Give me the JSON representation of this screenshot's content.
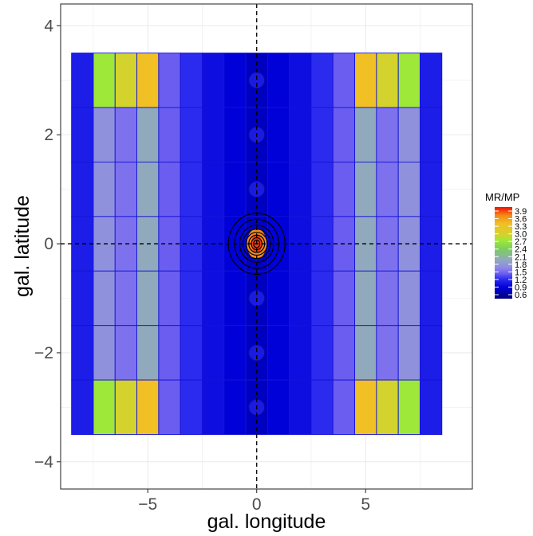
{
  "chart_data": {
    "type": "heatmap",
    "title": "",
    "xlabel": "gal. longitude",
    "ylabel": "gal. latitude",
    "xlim": [
      -9,
      9.9
    ],
    "ylim": [
      -4.5,
      4.4
    ],
    "x_ticks": [
      -5,
      0,
      5
    ],
    "x_tick_labels": [
      "−5",
      "0",
      "5"
    ],
    "y_ticks": [
      -4,
      -2,
      0,
      2,
      4
    ],
    "y_tick_labels": [
      "−4",
      "−2",
      "0",
      "2",
      "4"
    ],
    "grid": true,
    "x_centers": [
      -8,
      -7,
      -6,
      -5,
      -4,
      -3,
      -2,
      -1,
      0,
      1,
      2,
      3,
      4,
      5,
      6,
      7,
      8
    ],
    "y_centers": [
      3,
      2,
      1,
      0,
      -1,
      -2,
      -3
    ],
    "cell_width": 1,
    "cell_height": 1,
    "column_values": [
      1.2,
      1.8,
      1.6,
      2.0,
      1.5,
      1.3,
      1.1,
      1.0,
      0.9,
      1.0,
      1.1,
      1.3,
      1.5,
      2.0,
      1.6,
      1.8,
      1.2
    ],
    "edge_row_values": [
      1.2,
      2.7,
      2.9,
      3.3,
      1.5,
      1.3,
      1.1,
      1.0,
      0.9,
      1.0,
      1.1,
      1.3,
      1.5,
      3.3,
      2.9,
      2.7,
      1.2
    ],
    "edge_rows": [
      3,
      -3
    ],
    "points": [
      {
        "x": 0,
        "y": 3
      },
      {
        "x": 0,
        "y": 2
      },
      {
        "x": 0,
        "y": 1
      },
      {
        "x": 0,
        "y": -1
      },
      {
        "x": 0,
        "y": -2
      },
      {
        "x": 0,
        "y": -3
      }
    ],
    "contour_peak": {
      "x": 0,
      "y": 0,
      "value": 3.9
    },
    "reference_lines": {
      "x": 0,
      "y": 0
    },
    "legend": {
      "title": "MR/MP",
      "position": "right",
      "range": [
        0.6,
        3.9
      ],
      "breaks": [
        "3.9",
        "3.6",
        "3.3",
        "3.0",
        "2.7",
        "2.4",
        "2.1",
        "1.8",
        "1.5",
        "1.2",
        "0.9",
        "0.6"
      ]
    },
    "colorscale": [
      {
        "v": 0.6,
        "color": "#00007a"
      },
      {
        "v": 1.0,
        "color": "#0000d8"
      },
      {
        "v": 1.3,
        "color": "#2b2bf0"
      },
      {
        "v": 1.5,
        "color": "#6a5df0"
      },
      {
        "v": 1.7,
        "color": "#8f85ec"
      },
      {
        "v": 2.0,
        "color": "#91a9bc"
      },
      {
        "v": 2.4,
        "color": "#7ccf5c"
      },
      {
        "v": 2.7,
        "color": "#9ee83a"
      },
      {
        "v": 2.9,
        "color": "#d4d22c"
      },
      {
        "v": 3.3,
        "color": "#f0c024"
      },
      {
        "v": 3.6,
        "color": "#f48a16"
      },
      {
        "v": 3.9,
        "color": "#f20d00"
      }
    ]
  }
}
